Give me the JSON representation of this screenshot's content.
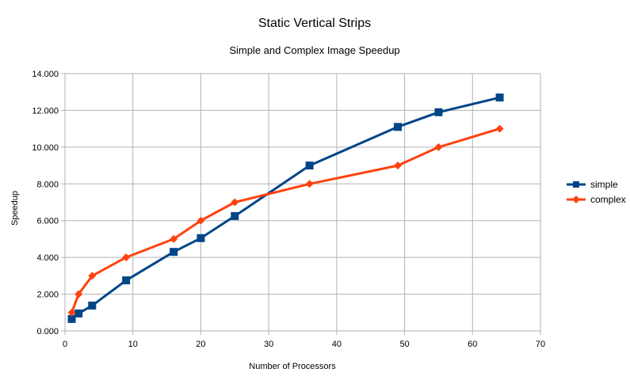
{
  "chart_data": {
    "type": "line",
    "title": "Static Vertical Strips",
    "subtitle": "Simple and Complex Image Speedup",
    "xlabel": "Number of Processors",
    "ylabel": "Speedup",
    "xlim": [
      0,
      70
    ],
    "ylim": [
      0,
      14
    ],
    "x_ticks": [
      0,
      10,
      20,
      30,
      40,
      50,
      60,
      70
    ],
    "y_ticks": [
      0,
      2,
      4,
      6,
      8,
      10,
      12,
      14
    ],
    "x_tick_labels": [
      "0",
      "10",
      "20",
      "30",
      "40",
      "50",
      "60",
      "70"
    ],
    "y_tick_labels": [
      "0.000",
      "2.000",
      "4.000",
      "6.000",
      "8.000",
      "10.000",
      "12.000",
      "14.000"
    ],
    "grid": true,
    "legend_position": "right",
    "series": [
      {
        "name": "simple",
        "color": "#004586",
        "marker": "square",
        "x": [
          1,
          2,
          4,
          9,
          16,
          20,
          25,
          36,
          49,
          55,
          64
        ],
        "y": [
          0.65,
          0.95,
          1.38,
          2.75,
          4.3,
          5.05,
          6.25,
          9.0,
          11.1,
          11.9,
          12.7
        ]
      },
      {
        "name": "complex",
        "color": "#ff420e",
        "marker": "diamond",
        "x": [
          1,
          2,
          4,
          9,
          16,
          20,
          25,
          36,
          49,
          55,
          64
        ],
        "y": [
          1.0,
          2.0,
          3.0,
          4.0,
          5.0,
          6.0,
          7.0,
          8.0,
          9.0,
          10.0,
          11.0
        ]
      }
    ]
  }
}
